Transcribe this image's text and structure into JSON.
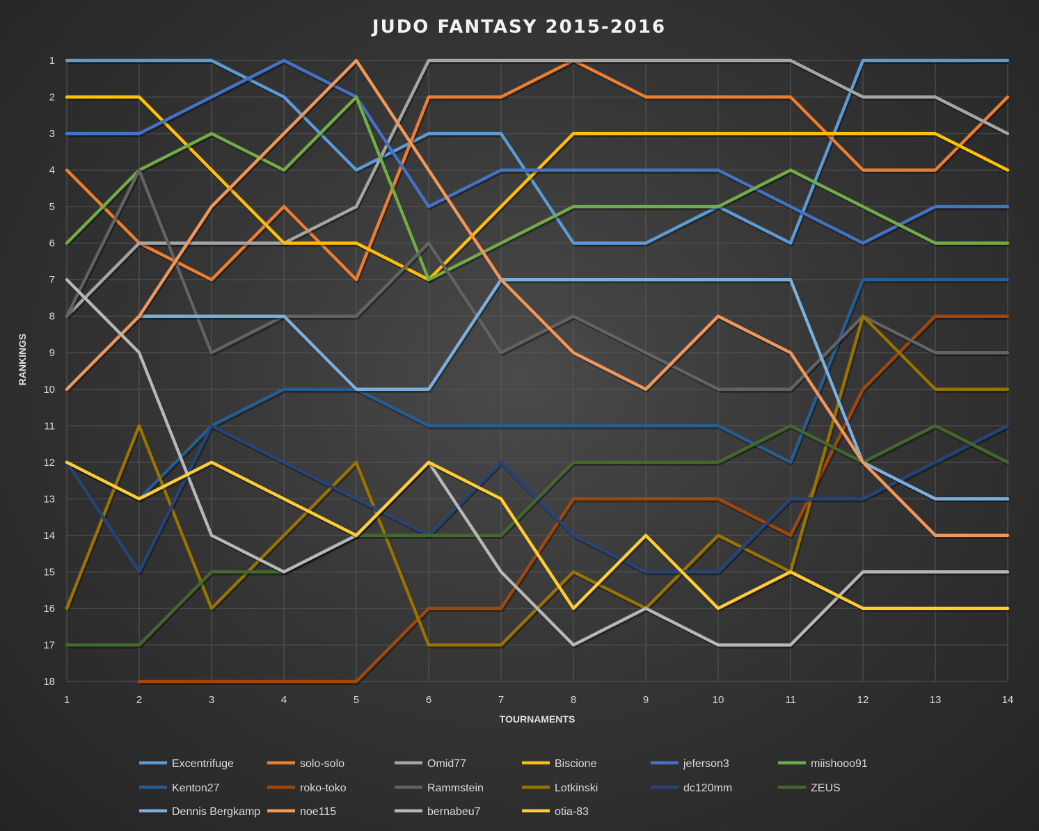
{
  "chart_data": {
    "type": "line",
    "title": "JUDO FANTASY 2015-2016",
    "xlabel": "TOURNAMENTS",
    "ylabel": "RANKINGS",
    "x": [
      1,
      2,
      3,
      4,
      5,
      6,
      7,
      8,
      9,
      10,
      11,
      12,
      13,
      14
    ],
    "ylim": [
      1,
      18
    ],
    "y_inverted": true,
    "y_ticks": [
      1,
      2,
      3,
      4,
      5,
      6,
      7,
      8,
      9,
      10,
      11,
      12,
      13,
      14,
      15,
      16,
      17,
      18
    ],
    "grid": true,
    "legend_position": "bottom",
    "series": [
      {
        "name": "Excentrifuge",
        "color": "#5B9BD5",
        "values": [
          1,
          1,
          1,
          2,
          4,
          3,
          3,
          6,
          6,
          5,
          6,
          1,
          1,
          1
        ]
      },
      {
        "name": "solo-solo",
        "color": "#ED7D31",
        "values": [
          4,
          6,
          7,
          5,
          7,
          2,
          2,
          1,
          2,
          2,
          2,
          4,
          4,
          2
        ]
      },
      {
        "name": "Omid77",
        "color": "#A5A5A5",
        "values": [
          8,
          6,
          6,
          6,
          5,
          1,
          1,
          1,
          1,
          1,
          1,
          2,
          2,
          3
        ]
      },
      {
        "name": "Biscione",
        "color": "#FFC000",
        "values": [
          2,
          2,
          4,
          6,
          6,
          7,
          5,
          3,
          3,
          3,
          3,
          3,
          3,
          4
        ]
      },
      {
        "name": "jeferson3",
        "color": "#4472C4",
        "values": [
          3,
          3,
          2,
          1,
          2,
          5,
          4,
          4,
          4,
          4,
          5,
          6,
          5,
          5
        ]
      },
      {
        "name": "miishooo91",
        "color": "#70AD47",
        "values": [
          6,
          4,
          3,
          4,
          2,
          7,
          6,
          5,
          5,
          5,
          4,
          5,
          6,
          6
        ]
      },
      {
        "name": "Kenton27",
        "color": "#255E91",
        "values": [
          12,
          13,
          11,
          10,
          10,
          11,
          11,
          11,
          11,
          11,
          12,
          7,
          7,
          7
        ]
      },
      {
        "name": "roko-toko",
        "color": "#9E480E",
        "values": [
          null,
          18,
          18,
          18,
          18,
          16,
          16,
          13,
          13,
          13,
          14,
          10,
          8,
          8
        ]
      },
      {
        "name": "Rammstein",
        "color": "#636363",
        "values": [
          8,
          4,
          9,
          8,
          8,
          6,
          9,
          8,
          9,
          10,
          10,
          8,
          9,
          9
        ]
      },
      {
        "name": "Lotkinski",
        "color": "#997300",
        "values": [
          16,
          11,
          16,
          14,
          12,
          17,
          17,
          15,
          16,
          14,
          15,
          8,
          10,
          10
        ]
      },
      {
        "name": "dc120mm",
        "color": "#264478",
        "values": [
          12,
          15,
          11,
          12,
          13,
          14,
          12,
          14,
          15,
          15,
          13,
          13,
          12,
          11
        ]
      },
      {
        "name": "ZEUS",
        "color": "#43682B",
        "values": [
          17,
          17,
          15,
          15,
          14,
          14,
          14,
          12,
          12,
          12,
          11,
          12,
          11,
          12
        ]
      },
      {
        "name": "Dennis Bergkamp",
        "color": "#7CAFDD",
        "values": [
          null,
          8,
          8,
          8,
          10,
          10,
          7,
          7,
          7,
          7,
          7,
          12,
          13,
          13
        ]
      },
      {
        "name": "noe115",
        "color": "#F1975A",
        "values": [
          10,
          8,
          5,
          3,
          1,
          4,
          7,
          9,
          10,
          8,
          9,
          12,
          14,
          14
        ]
      },
      {
        "name": "bernabeu7",
        "color": "#B7B7B7",
        "values": [
          7,
          9,
          14,
          15,
          14,
          12,
          15,
          17,
          16,
          17,
          17,
          15,
          15,
          15
        ]
      },
      {
        "name": "otia-83",
        "color": "#FFCD33",
        "values": [
          12,
          13,
          12,
          13,
          14,
          12,
          13,
          16,
          14,
          16,
          15,
          16,
          16,
          16
        ]
      }
    ]
  }
}
